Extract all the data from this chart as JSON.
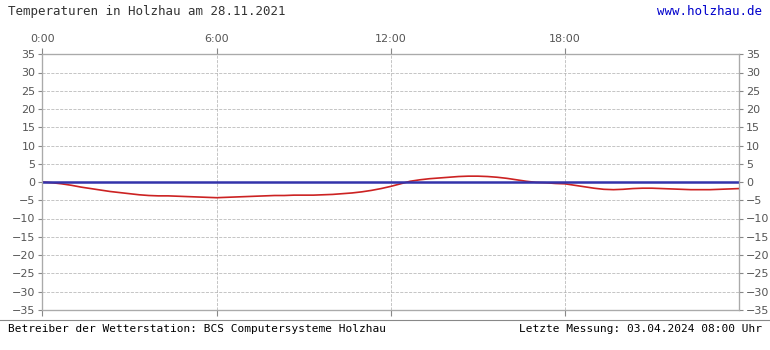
{
  "title": "Temperaturen in Holzhau am 28.11.2021",
  "url_text": "www.holzhau.de",
  "footer_left": "Betreiber der Wetterstation: BCS Computersysteme Holzhau",
  "footer_right": "Letzte Messung: 03.04.2024 08:00 Uhr",
  "ylim": [
    -35,
    35
  ],
  "yticks": [
    -35,
    -30,
    -25,
    -20,
    -15,
    -10,
    -5,
    0,
    5,
    10,
    15,
    20,
    25,
    30,
    35
  ],
  "xlim": [
    0,
    1440
  ],
  "xtick_positions": [
    0,
    360,
    720,
    1080
  ],
  "xticklabels": [
    "0:00",
    "6:00",
    "12:00",
    "18:00"
  ],
  "vline_positions": [
    0,
    360,
    720,
    1080,
    1440
  ],
  "bg_color": "#ffffff",
  "grid_color": "#aaaaaa",
  "title_color": "#333333",
  "url_color": "#0000cc",
  "footer_color": "#000000",
  "line_blue_color": "#3333aa",
  "line_red_color": "#cc2222",
  "blue_line_x": [
    0,
    1440
  ],
  "blue_line_y": [
    0,
    0
  ],
  "red_line_x": [
    0,
    20,
    40,
    60,
    80,
    100,
    120,
    140,
    160,
    180,
    200,
    220,
    240,
    260,
    280,
    300,
    320,
    340,
    360,
    380,
    400,
    420,
    440,
    460,
    480,
    500,
    520,
    540,
    560,
    580,
    600,
    620,
    640,
    660,
    680,
    700,
    720,
    740,
    760,
    780,
    800,
    820,
    840,
    860,
    880,
    900,
    920,
    940,
    960,
    980,
    1000,
    1020,
    1040,
    1060,
    1080,
    1100,
    1120,
    1140,
    1160,
    1180,
    1200,
    1220,
    1240,
    1260,
    1280,
    1300,
    1320,
    1340,
    1360,
    1380,
    1400,
    1420,
    1440
  ],
  "red_line_y": [
    0,
    -0.2,
    -0.5,
    -0.9,
    -1.4,
    -1.8,
    -2.2,
    -2.6,
    -2.9,
    -3.2,
    -3.5,
    -3.7,
    -3.8,
    -3.8,
    -3.9,
    -4.0,
    -4.1,
    -4.2,
    -4.3,
    -4.2,
    -4.1,
    -4.0,
    -3.9,
    -3.8,
    -3.7,
    -3.7,
    -3.6,
    -3.6,
    -3.6,
    -3.5,
    -3.4,
    -3.2,
    -3.0,
    -2.7,
    -2.3,
    -1.8,
    -1.2,
    -0.5,
    0.2,
    0.6,
    0.9,
    1.1,
    1.3,
    1.5,
    1.6,
    1.6,
    1.5,
    1.3,
    1.0,
    0.6,
    0.2,
    -0.1,
    -0.2,
    -0.4,
    -0.5,
    -0.9,
    -1.3,
    -1.7,
    -2.0,
    -2.1,
    -2.0,
    -1.8,
    -1.7,
    -1.7,
    -1.8,
    -1.9,
    -2.0,
    -2.1,
    -2.1,
    -2.1,
    -2.0,
    -1.9,
    -1.8
  ]
}
